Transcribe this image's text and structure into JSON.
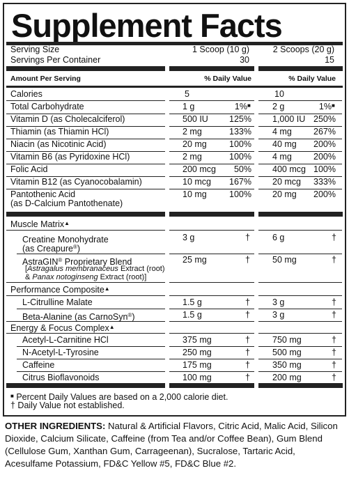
{
  "title": "Supplement Facts",
  "serving_size_label": "Serving Size",
  "servings_per_container_label": "Servings Per Container",
  "serving1": {
    "size": "1 Scoop (10 g)",
    "servings": "30"
  },
  "serving2": {
    "size": "2 Scoops (20 g)",
    "servings": "15"
  },
  "amount_per_serving": "Amount Per Serving",
  "daily_value_header": "% Daily Value",
  "calories": {
    "name": "Calories",
    "v1": "5",
    "v2": "10"
  },
  "nutrients": [
    {
      "name": "Total Carbohydrate",
      "a1": "1 g",
      "d1": "1%",
      "a2": "2 g",
      "d2": "1%",
      "mark": true
    },
    {
      "name": "Vitamin D (as Cholecalciferol)",
      "a1": "500 IU",
      "d1": "125%",
      "a2": "1,000 IU",
      "d2": "250%"
    },
    {
      "name": "Thiamin (as Thiamin HCl)",
      "a1": "2 mg",
      "d1": "133%",
      "a2": "4 mg",
      "d2": "267%"
    },
    {
      "name": "Niacin (as Nicotinic Acid)",
      "a1": "20 mg",
      "d1": "100%",
      "a2": "40 mg",
      "d2": "200%"
    },
    {
      "name": "Vitamin B6 (as Pyridoxine HCl)",
      "a1": "2 mg",
      "d1": "100%",
      "a2": "4 mg",
      "d2": "200%"
    },
    {
      "name": "Folic Acid",
      "a1": "200 mcg",
      "d1": "50%",
      "a2": "400 mcg",
      "d2": "100%"
    },
    {
      "name": "Vitamin B12 (as Cyanocobalamin)",
      "a1": "10 mcg",
      "d1": "167%",
      "a2": "20 mcg",
      "d2": "333%"
    }
  ],
  "pantothenic": {
    "line1": "Pantothenic Acid",
    "line2": "(as D-Calcium Pantothenate)",
    "a1": "10 mg",
    "d1": "100%",
    "a2": "20 mg",
    "d2": "200%"
  },
  "muscle_matrix": {
    "title": "Muscle Matrix",
    "mark": "▲"
  },
  "creatine": {
    "line1": "Creatine Monohydrate",
    "line2": "(as Creapure",
    "line2_end": ")",
    "reg": "®",
    "a1": "3 g",
    "a2": "6 g"
  },
  "astragin": {
    "line1": "AstraGIN",
    "line1_end": " Proprietary Blend",
    "reg": "®",
    "l2_open": "[",
    "l2_italic": "Astragalus membranaceus",
    "l2_rest": " Extract (root)",
    "l3_amp": "& ",
    "l3_italic": "Panax notoginseng",
    "l3_rest": " Extract (root)]",
    "a1": "25 mg",
    "a2": "50 mg"
  },
  "performance_composite": {
    "title": "Performance Composite",
    "mark": "▲"
  },
  "performance_items": [
    {
      "name": "L-Citrulline Malate",
      "a1": "1.5 g",
      "a2": "3 g"
    },
    {
      "name": "Beta-Alanine (as CarnoSyn",
      "name_end": ")",
      "reg": "®",
      "a1": "1.5 g",
      "a2": "3 g"
    }
  ],
  "energy_complex": {
    "title": "Energy & Focus Complex",
    "mark": "▲"
  },
  "energy_items": [
    {
      "name": "Acetyl-L-Carnitine HCl",
      "a1": "375 mg",
      "a2": "750 mg"
    },
    {
      "name": "N-Acetyl-L-Tyrosine",
      "a1": "250 mg",
      "a2": "500 mg"
    },
    {
      "name": "Caffeine",
      "a1": "175 mg",
      "a2": "350 mg"
    },
    {
      "name": "Citrus Bioflavonoids",
      "a1": "100 mg",
      "a2": "200 mg"
    }
  ],
  "dagger": "†",
  "footnote1_mark": "■",
  "footnote1": " Percent Daily Values are based on a 2,000 calorie diet.",
  "footnote2": "† Daily Value not established.",
  "other_ingredients_label": "OTHER INGREDIENTS:",
  "other_ingredients_text": " Natural & Artificial Flavors, Citric Acid, Malic Acid, Silicon Dioxide, Calcium Silicate, Caffeine (from Tea and/or Coffee Bean), Gum Blend (Cellulose Gum, Xanthan Gum, Carrageenan), Sucralose, Tartaric Acid, Acesulfame Potassium, FD&C Yellow #5, FD&C Blue #2."
}
